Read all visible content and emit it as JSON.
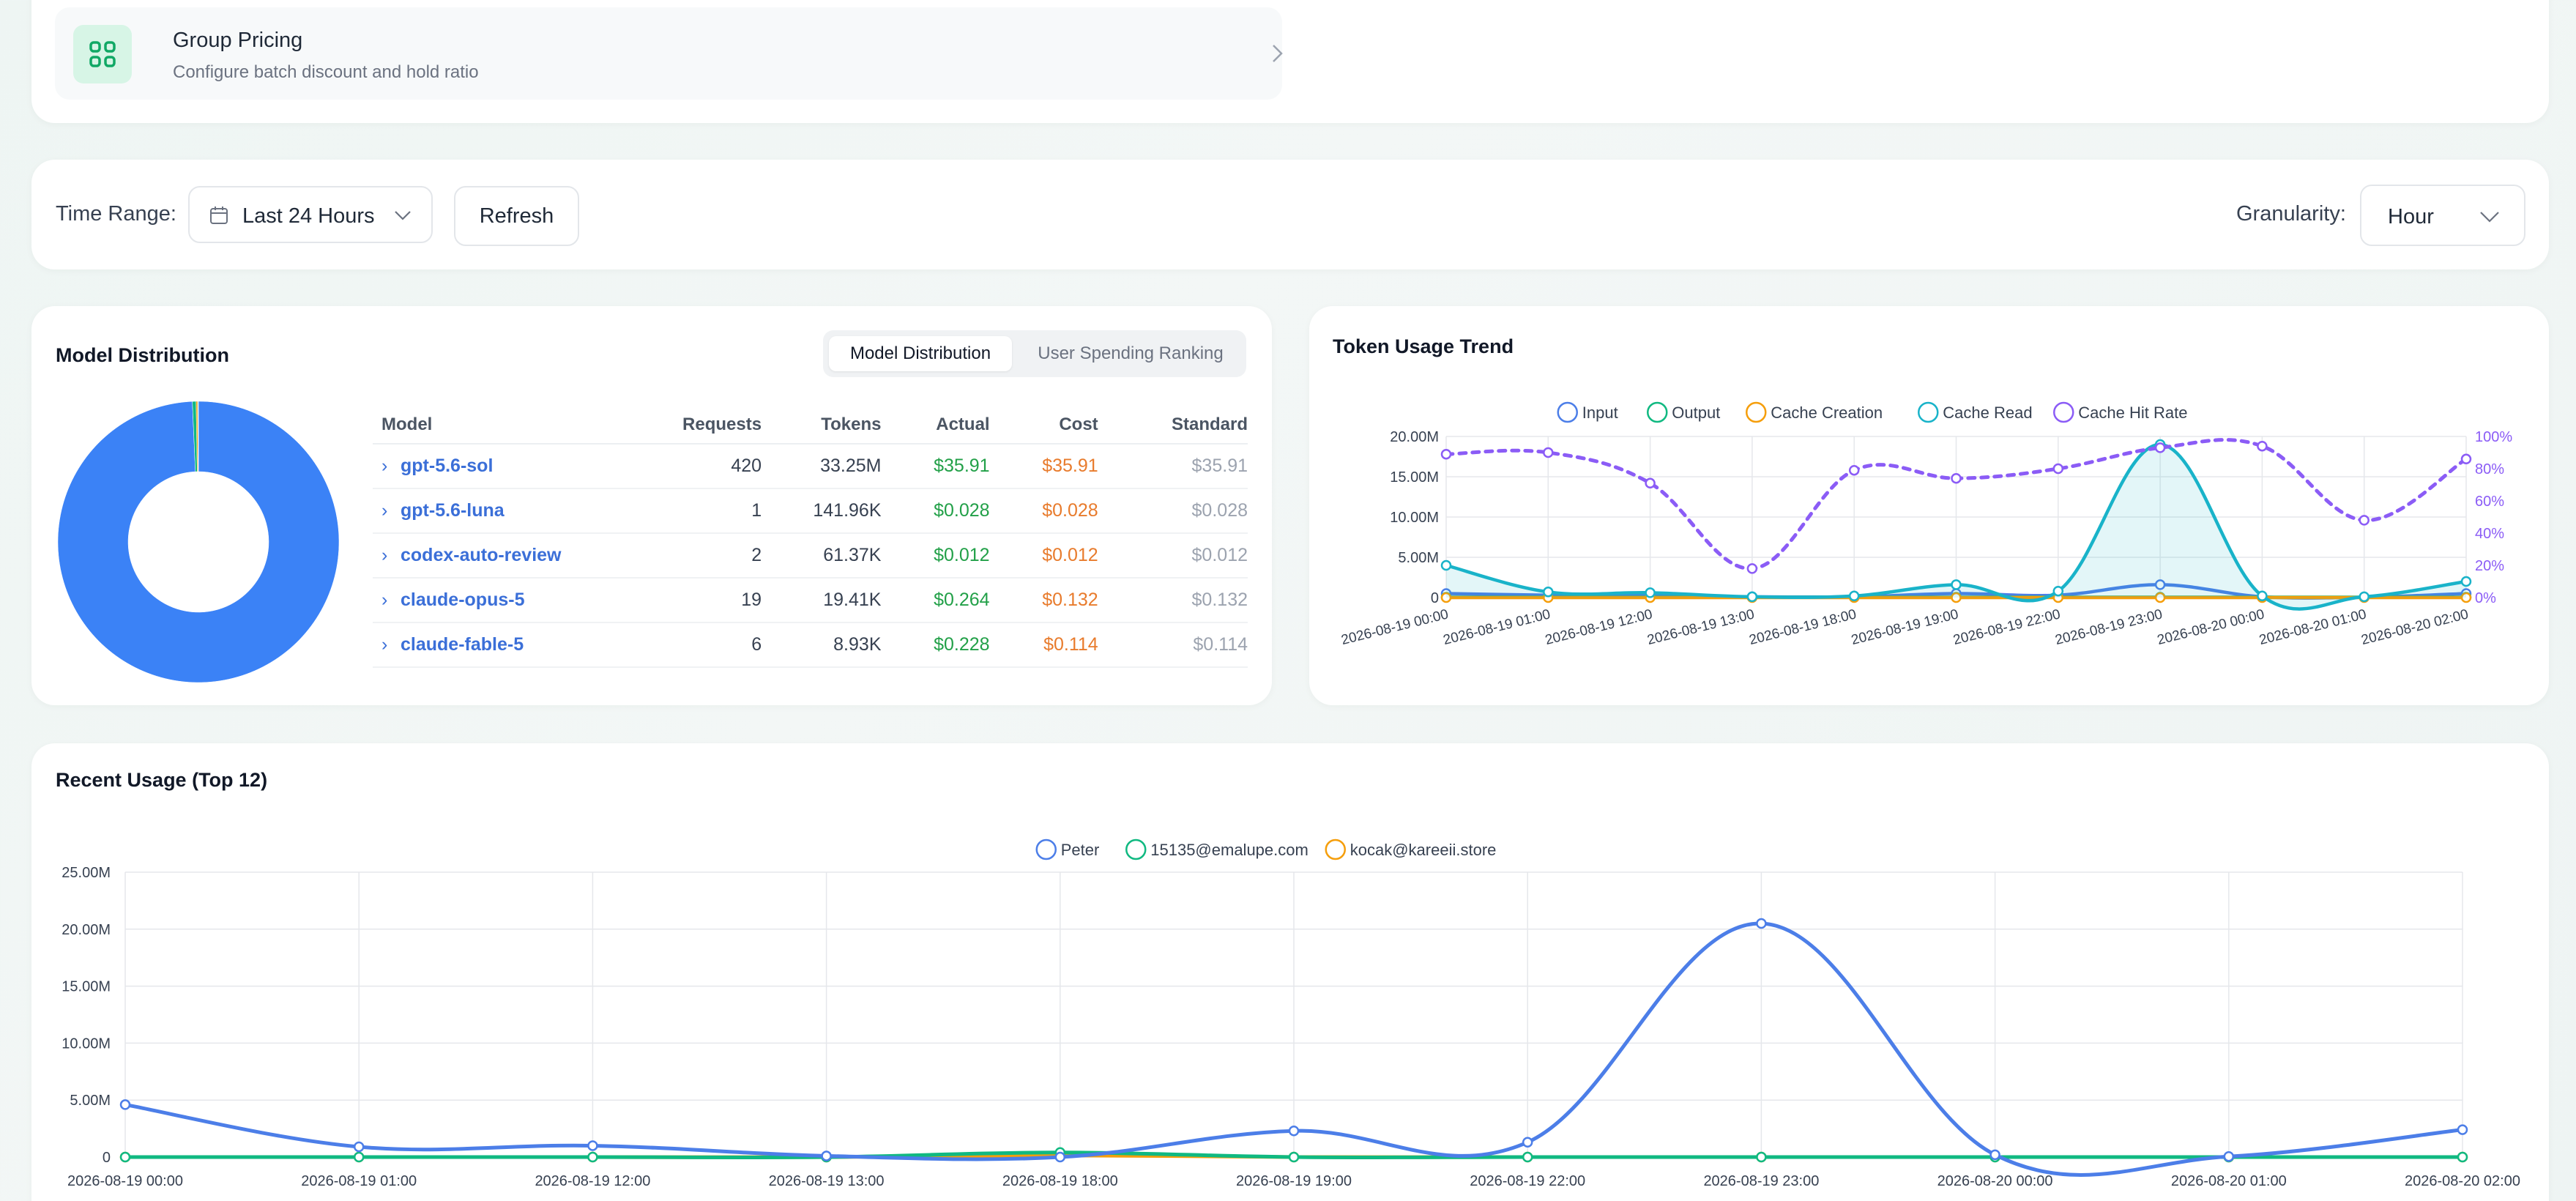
{
  "group_pricing": {
    "title": "Group Pricing",
    "subtitle": "Configure batch discount and hold ratio",
    "accent": "#10b981"
  },
  "filters": {
    "time_range_label": "Time Range:",
    "time_range_value": "Last 24 Hours",
    "refresh_label": "Refresh",
    "granularity_label": "Granularity:",
    "granularity_value": "Hour"
  },
  "model_distribution": {
    "title": "Model Distribution",
    "tabs": [
      {
        "label": "Model Distribution",
        "active": true
      },
      {
        "label": "User Spending Ranking",
        "active": false
      }
    ],
    "columns": [
      "Model",
      "Requests",
      "Tokens",
      "Actual",
      "Cost",
      "Standard"
    ],
    "rows": [
      {
        "model": "gpt-5.6-sol",
        "requests": "420",
        "tokens": "33.25M",
        "actual": "$35.91",
        "cost": "$35.91",
        "standard": "$35.91"
      },
      {
        "model": "gpt-5.6-luna",
        "requests": "1",
        "tokens": "141.96K",
        "actual": "$0.028",
        "cost": "$0.028",
        "standard": "$0.028"
      },
      {
        "model": "codex-auto-review",
        "requests": "2",
        "tokens": "61.37K",
        "actual": "$0.012",
        "cost": "$0.012",
        "standard": "$0.012"
      },
      {
        "model": "claude-opus-5",
        "requests": "19",
        "tokens": "19.41K",
        "actual": "$0.264",
        "cost": "$0.132",
        "standard": "$0.132"
      },
      {
        "model": "claude-fable-5",
        "requests": "6",
        "tokens": "8.93K",
        "actual": "$0.228",
        "cost": "$0.114",
        "standard": "$0.114"
      }
    ]
  },
  "chart_data": [
    {
      "type": "pie",
      "title": "",
      "donut": true,
      "labels": [
        "gpt-5.6-sol",
        "gpt-5.6-luna",
        "codex-auto-review",
        "claude-opus-5",
        "claude-fable-5"
      ],
      "values": [
        33250000,
        141960,
        61370,
        19410,
        8930
      ],
      "colors": [
        "#3b82f6",
        "#10b981",
        "#f59e0b",
        "#06b6d4",
        "#8b5cf6"
      ]
    },
    {
      "type": "line",
      "title": "Token Usage Trend",
      "x": [
        "2026-08-19 00:00",
        "2026-08-19 01:00",
        "2026-08-19 12:00",
        "2026-08-19 13:00",
        "2026-08-19 18:00",
        "2026-08-19 19:00",
        "2026-08-19 22:00",
        "2026-08-19 23:00",
        "2026-08-20 00:00",
        "2026-08-20 01:00",
        "2026-08-20 02:00"
      ],
      "y_ticks": [
        "0",
        "5.00M",
        "10.00M",
        "15.00M",
        "20.00M"
      ],
      "y2_ticks": [
        "0%",
        "20%",
        "40%",
        "60%",
        "80%",
        "100%"
      ],
      "ylim": [
        0,
        20000000
      ],
      "y2lim": [
        0,
        100
      ],
      "legend_position": "top",
      "grid": true,
      "series": [
        {
          "name": "Input",
          "color": "#4c7ee8",
          "values": [
            500000,
            300000,
            200000,
            100000,
            100000,
            500000,
            300000,
            1600000,
            100000,
            50000,
            500000
          ]
        },
        {
          "name": "Output",
          "color": "#10b981",
          "values": [
            50000,
            50000,
            50000,
            50000,
            50000,
            50000,
            50000,
            50000,
            50000,
            50000,
            50000
          ]
        },
        {
          "name": "Cache Creation",
          "color": "#f59e0b",
          "values": [
            0,
            0,
            0,
            0,
            0,
            0,
            0,
            0,
            0,
            0,
            0
          ]
        },
        {
          "name": "Cache Read",
          "color": "#19b3c9",
          "values": [
            4000000,
            700000,
            600000,
            100000,
            200000,
            1600000,
            800000,
            19000000,
            200000,
            100000,
            2000000
          ],
          "area": true
        },
        {
          "name": "Cache Hit Rate",
          "color": "#8b5cf6",
          "axis": "right",
          "dashed": true,
          "values": [
            89,
            90,
            71,
            18,
            79,
            74,
            80,
            93,
            94,
            48,
            86
          ]
        }
      ]
    },
    {
      "type": "line",
      "title": "Recent Usage (Top 12)",
      "x": [
        "2026-08-19 00:00",
        "2026-08-19 01:00",
        "2026-08-19 12:00",
        "2026-08-19 13:00",
        "2026-08-19 18:00",
        "2026-08-19 19:00",
        "2026-08-19 22:00",
        "2026-08-19 23:00",
        "2026-08-20 00:00",
        "2026-08-20 01:00",
        "2026-08-20 02:00"
      ],
      "y_ticks": [
        "0",
        "5.00M",
        "10.00M",
        "15.00M",
        "20.00M",
        "25.00M"
      ],
      "ylim": [
        0,
        25000000
      ],
      "legend_position": "top",
      "grid": true,
      "series": [
        {
          "name": "Peter",
          "color": "#4c7ee8",
          "values": [
            4600000,
            900000,
            1000000,
            100000,
            0,
            2300000,
            1300000,
            20500000,
            200000,
            50000,
            2400000
          ]
        },
        {
          "name": "15135@emalupe.com",
          "color": "#10b981",
          "values": [
            0,
            0,
            0,
            0,
            400000,
            0,
            0,
            0,
            0,
            0,
            0
          ]
        },
        {
          "name": "kocak@kareeii.store",
          "color": "#f59e0b",
          "values": [
            0,
            0,
            0,
            0,
            150000,
            0,
            0,
            0,
            0,
            0,
            0
          ]
        }
      ]
    }
  ]
}
